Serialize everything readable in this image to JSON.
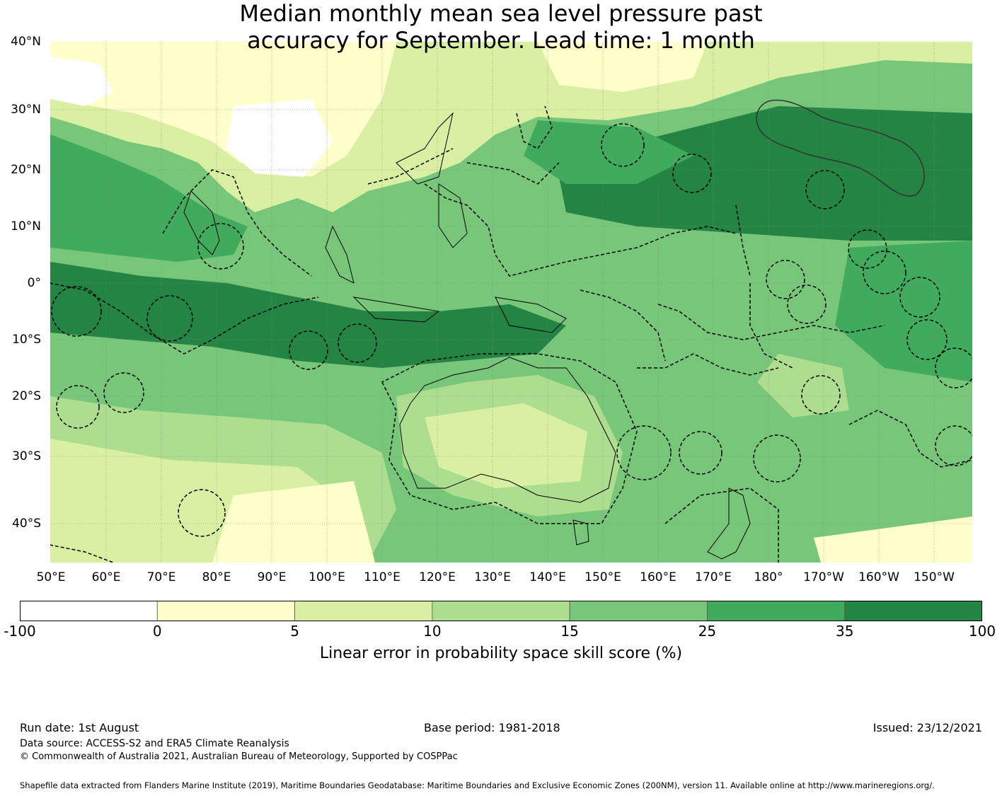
{
  "title_line1": "Median monthly mean sea level pressure past",
  "title_line2": "accuracy for September. Lead time: 1 month",
  "map": {
    "lat_labels": [
      "40°N",
      "30°N",
      "20°N",
      "10°N",
      "0°",
      "10°S",
      "20°S",
      "30°S",
      "40°S"
    ],
    "lon_labels": [
      "50°E",
      "60°E",
      "70°E",
      "80°E",
      "90°E",
      "100°E",
      "110°E",
      "120°E",
      "130°E",
      "140°E",
      "150°E",
      "160°E",
      "170°E",
      "180°",
      "170°W",
      "160°W",
      "150°W"
    ],
    "ocean_color": "#79c372",
    "land_color": "#ffffcc"
  },
  "colorbar": {
    "ticks": [
      "-100",
      "0",
      "5",
      "10",
      "15",
      "25",
      "35",
      "100"
    ],
    "colors": [
      "#ffffff",
      "#ffffcc",
      "#d9f0a3",
      "#addd8e",
      "#78c679",
      "#41ab5d",
      "#238443"
    ],
    "label": "Linear error in probability space skill score (%)"
  },
  "footer": {
    "run_date": "Run date: 1st August",
    "base_period": "Base period: 1981-2018",
    "issued": "Issued: 23/12/2021",
    "data_source": "Data source: ACCESS-S2 and ERA5 Climate Reanalysis",
    "copyright": "© Commonwealth of Australia 2021, Australian Bureau of Meteorology, Supported by COSPPac",
    "shapefile": "Shapefile data extracted from Flanders Marine Institute (2019), Maritime Boundaries Geodatabase: Maritime Boundaries and Exclusive Economic Zones (200NM), version 11. Available online at http://www.marineregions.org/."
  }
}
